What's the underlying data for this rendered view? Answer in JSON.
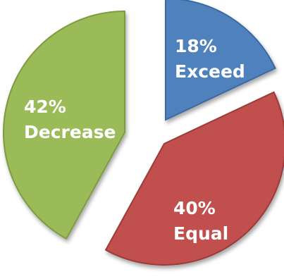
{
  "chart_data": {
    "type": "pie",
    "exploded": true,
    "slices": [
      {
        "label": "Exceed",
        "value": 18,
        "value_label": "18%",
        "color": "#4f81bd",
        "edge_color": "#3a6aa3"
      },
      {
        "label": "Equal",
        "value": 40,
        "value_label": "40%",
        "color": "#c0504d",
        "edge_color": "#9c3b39"
      },
      {
        "label": "Decrease",
        "value": 42,
        "value_label": "42%",
        "color": "#9bbb59",
        "edge_color": "#7d9b41"
      }
    ]
  }
}
